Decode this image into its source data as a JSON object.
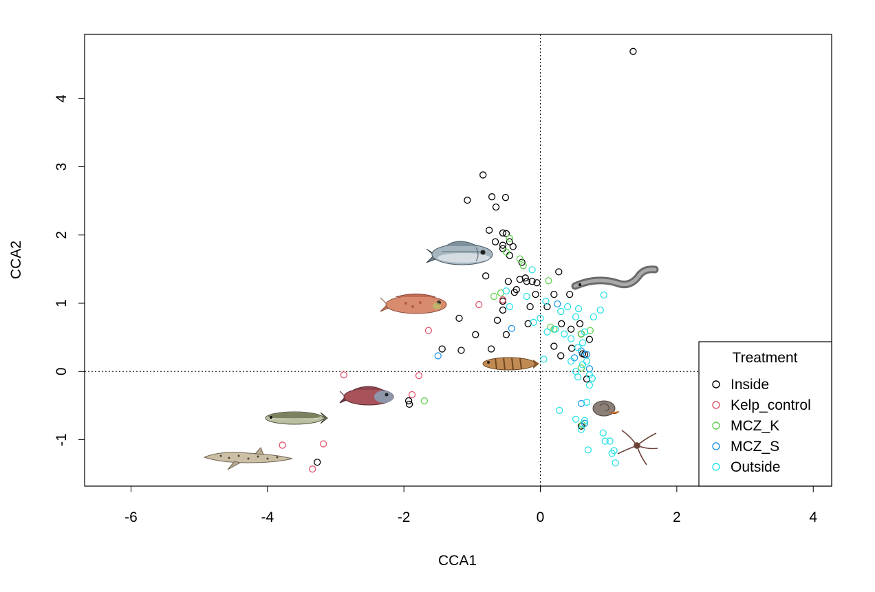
{
  "chart_data": {
    "type": "scatter",
    "title": "",
    "xlabel": "CCA1",
    "ylabel": "CCA2",
    "xlim": [
      -6.68,
      4.27
    ],
    "ylim": [
      -1.68,
      4.94
    ],
    "xticks": [
      -6,
      -4,
      -2,
      0,
      2,
      4
    ],
    "yticks": [
      -1,
      0,
      1,
      2,
      3,
      4
    ],
    "xtick_labels": [
      "-6",
      "-4",
      "-2",
      "0",
      "2",
      "4"
    ],
    "ytick_labels": [
      "-1",
      "0",
      "1",
      "2",
      "3",
      "4"
    ],
    "reference_lines": {
      "x": 0,
      "y": 0,
      "style": "dotted"
    },
    "legend": {
      "title": "Treatment",
      "position": "bottom-right",
      "entries": [
        "Inside",
        "Kelp_control",
        "MCZ_K",
        "MCZ_S",
        "Outside"
      ]
    },
    "colors": {
      "Inside": "#000000",
      "Kelp_control": "#df536b",
      "MCZ_K": "#61d04f",
      "MCZ_S": "#2297e6",
      "Outside": "#28e2e5"
    },
    "species_icons": [
      {
        "name": "sea bream",
        "x": -1.15,
        "y": 1.7
      },
      {
        "name": "wrasse",
        "x": -1.95,
        "y": 0.98
      },
      {
        "name": "conger eel",
        "x": 1.0,
        "y": 1.3
      },
      {
        "name": "goby",
        "x": -0.45,
        "y": 0.12
      },
      {
        "name": "rockfish",
        "x": -2.5,
        "y": -0.37
      },
      {
        "name": "pollack",
        "x": -3.6,
        "y": -0.68
      },
      {
        "name": "dogfish",
        "x": -4.3,
        "y": -1.25
      },
      {
        "name": "whelk",
        "x": 0.95,
        "y": -0.53
      },
      {
        "name": "brittlestar",
        "x": 1.45,
        "y": -1.05
      }
    ],
    "series": [
      {
        "name": "Inside",
        "points": [
          [
            1.36,
            4.69
          ],
          [
            -0.84,
            2.88
          ],
          [
            -1.07,
            2.51
          ],
          [
            -0.71,
            2.56
          ],
          [
            -0.51,
            2.55
          ],
          [
            -0.65,
            2.41
          ],
          [
            -0.75,
            2.07
          ],
          [
            -0.55,
            2.03
          ],
          [
            -0.5,
            2.02
          ],
          [
            -0.66,
            1.9
          ],
          [
            -0.55,
            1.85
          ],
          [
            -0.45,
            1.9
          ],
          [
            -0.4,
            1.83
          ],
          [
            -0.55,
            1.8
          ],
          [
            -0.45,
            1.7
          ],
          [
            -0.27,
            1.6
          ],
          [
            -0.8,
            1.4
          ],
          [
            -0.47,
            1.32
          ],
          [
            -0.3,
            1.35
          ],
          [
            -0.22,
            1.37
          ],
          [
            -0.2,
            1.32
          ],
          [
            -0.12,
            1.32
          ],
          [
            -0.05,
            1.3
          ],
          [
            -0.35,
            1.2
          ],
          [
            -0.38,
            1.16
          ],
          [
            -0.07,
            1.13
          ],
          [
            0.27,
            1.46
          ],
          [
            0.2,
            1.13
          ],
          [
            0.43,
            1.13
          ],
          [
            -0.55,
            1.03
          ],
          [
            -0.15,
            0.95
          ],
          [
            0.1,
            0.95
          ],
          [
            -0.55,
            0.9
          ],
          [
            -0.63,
            0.75
          ],
          [
            -0.18,
            0.7
          ],
          [
            0.31,
            0.7
          ],
          [
            0.58,
            0.7
          ],
          [
            0.45,
            0.62
          ],
          [
            -1.19,
            0.78
          ],
          [
            -0.95,
            0.54
          ],
          [
            -0.5,
            0.54
          ],
          [
            0.6,
            0.55
          ],
          [
            0.72,
            0.47
          ],
          [
            -1.44,
            0.33
          ],
          [
            -1.16,
            0.31
          ],
          [
            -0.72,
            0.33
          ],
          [
            0.2,
            0.37
          ],
          [
            0.46,
            0.34
          ],
          [
            0.3,
            0.23
          ],
          [
            0.62,
            0.26
          ],
          [
            0.65,
            0.25
          ],
          [
            0.68,
            -0.11
          ],
          [
            0.6,
            -0.8
          ],
          [
            -1.93,
            -0.43
          ],
          [
            -1.92,
            -0.48
          ],
          [
            -3.27,
            -1.33
          ]
        ]
      },
      {
        "name": "Kelp_control",
        "points": [
          [
            -0.55,
            1.05
          ],
          [
            -0.9,
            0.98
          ],
          [
            -1.64,
            0.6
          ],
          [
            -2.88,
            -0.05
          ],
          [
            -1.78,
            -0.06
          ],
          [
            -1.88,
            -0.34
          ],
          [
            -3.78,
            -1.08
          ],
          [
            -3.18,
            -1.06
          ],
          [
            -3.34,
            -1.43
          ]
        ]
      },
      {
        "name": "MCZ_K",
        "points": [
          [
            -0.45,
            1.95
          ],
          [
            -0.5,
            1.75
          ],
          [
            -0.3,
            1.65
          ],
          [
            -0.25,
            1.55
          ],
          [
            -0.68,
            1.1
          ],
          [
            -0.58,
            1.15
          ],
          [
            0.12,
            1.33
          ],
          [
            0.15,
            0.65
          ],
          [
            0.2,
            0.62
          ],
          [
            0.6,
            0.55
          ],
          [
            0.73,
            0.6
          ],
          [
            -1.7,
            -0.43
          ],
          [
            0.6,
            0.05
          ],
          [
            0.62,
            -0.78
          ]
        ]
      },
      {
        "name": "MCZ_S",
        "points": [
          [
            -1.5,
            0.23
          ],
          [
            -0.42,
            0.63
          ],
          [
            0.25,
            0.99
          ],
          [
            0.68,
            0.25
          ],
          [
            0.72,
            0.04
          ],
          [
            0.6,
            -0.47
          ],
          [
            0.65,
            -0.76
          ],
          [
            0.6,
            0.3
          ],
          [
            0.5,
            0.2
          ]
        ]
      },
      {
        "name": "Outside",
        "points": [
          [
            -0.12,
            1.49
          ],
          [
            -0.5,
            1.18
          ],
          [
            -0.45,
            0.95
          ],
          [
            -0.2,
            1.1
          ],
          [
            0.08,
            1.03
          ],
          [
            -0.1,
            0.72
          ],
          [
            0.0,
            0.78
          ],
          [
            0.1,
            0.58
          ],
          [
            0.22,
            0.62
          ],
          [
            0.3,
            0.88
          ],
          [
            0.4,
            0.95
          ],
          [
            0.52,
            0.8
          ],
          [
            0.56,
            0.92
          ],
          [
            0.65,
            0.58
          ],
          [
            0.78,
            0.8
          ],
          [
            0.88,
            0.9
          ],
          [
            0.93,
            1.12
          ],
          [
            0.35,
            0.55
          ],
          [
            0.45,
            0.48
          ],
          [
            0.55,
            0.35
          ],
          [
            0.62,
            0.42
          ],
          [
            0.68,
            0.15
          ],
          [
            0.72,
            -0.05
          ],
          [
            0.76,
            -0.1
          ],
          [
            0.55,
            -0.08
          ],
          [
            0.45,
            0.15
          ],
          [
            0.52,
            0.0
          ],
          [
            0.62,
            0.1
          ],
          [
            0.05,
            0.18
          ],
          [
            0.28,
            -0.57
          ],
          [
            0.52,
            -0.7
          ],
          [
            0.65,
            -0.72
          ],
          [
            0.68,
            -0.45
          ],
          [
            0.6,
            -0.85
          ],
          [
            0.7,
            -1.15
          ],
          [
            0.92,
            -0.9
          ],
          [
            0.95,
            -1.02
          ],
          [
            1.02,
            -1.02
          ],
          [
            1.05,
            -1.2
          ],
          [
            1.08,
            -1.16
          ],
          [
            1.1,
            -1.34
          ],
          [
            0.72,
            -0.2
          ]
        ]
      }
    ]
  }
}
